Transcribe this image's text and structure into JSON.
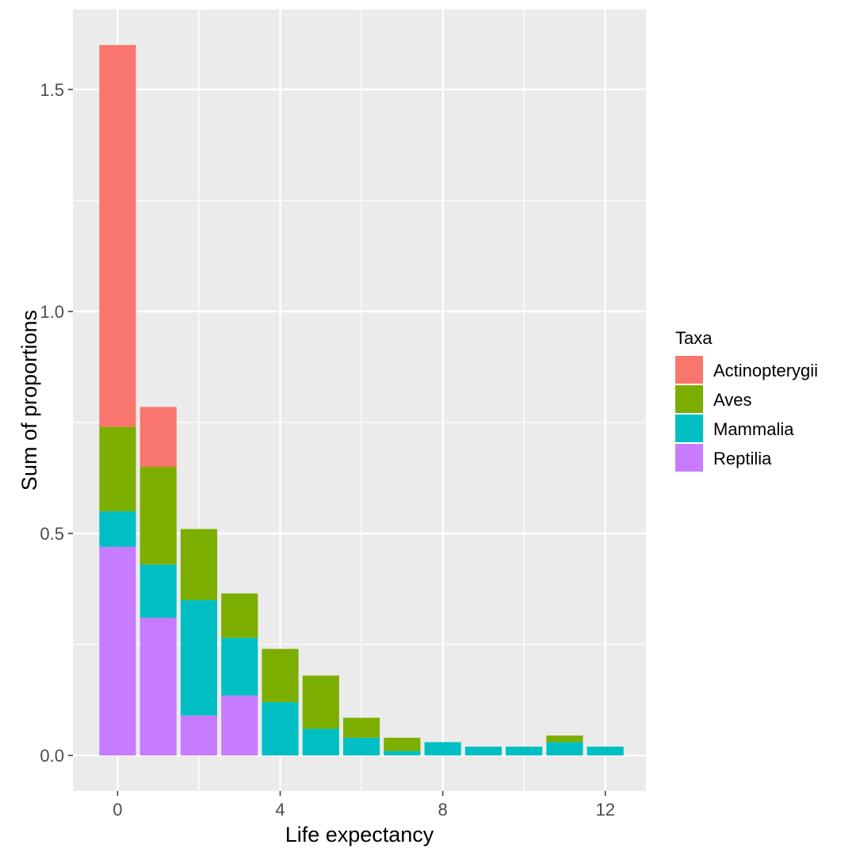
{
  "chart_data": {
    "type": "bar",
    "stacked": true,
    "xlabel": "Life expectancy",
    "ylabel": "Sum of proportions",
    "x": [
      0,
      1,
      2,
      3,
      4,
      5,
      6,
      7,
      8,
      9,
      10,
      11,
      12
    ],
    "xlim": [
      -1.1,
      13.0
    ],
    "ylim": [
      -0.08,
      1.68
    ],
    "x_ticks": [
      0,
      4,
      8,
      12
    ],
    "x_tick_labels": [
      "0",
      "4",
      "8",
      "12"
    ],
    "y_ticks": [
      0.0,
      0.5,
      1.0,
      1.5
    ],
    "y_tick_labels": [
      "0.0",
      "0.5",
      "1.0",
      "1.5"
    ],
    "grid": true,
    "legend": {
      "title": "Taxa",
      "position": "right"
    },
    "series": [
      {
        "name": "Reptilia",
        "color": "#C77CFF",
        "values": [
          0.47,
          0.31,
          0.09,
          0.135,
          0,
          0,
          0,
          0,
          0,
          0,
          0,
          0,
          0
        ]
      },
      {
        "name": "Mammalia",
        "color": "#00BFC4",
        "values": [
          0.08,
          0.12,
          0.26,
          0.13,
          0.12,
          0.06,
          0.04,
          0.01,
          0.03,
          0.02,
          0.02,
          0.03,
          0.02
        ]
      },
      {
        "name": "Aves",
        "color": "#7CAE00",
        "values": [
          0.19,
          0.22,
          0.16,
          0.1,
          0.12,
          0.12,
          0.045,
          0.03,
          0,
          0,
          0,
          0.015,
          0
        ]
      },
      {
        "name": "Actinopterygii",
        "color": "#F8766D",
        "values": [
          0.86,
          0.135,
          0,
          0,
          0,
          0,
          0,
          0,
          0,
          0,
          0,
          0,
          0
        ]
      }
    ]
  }
}
